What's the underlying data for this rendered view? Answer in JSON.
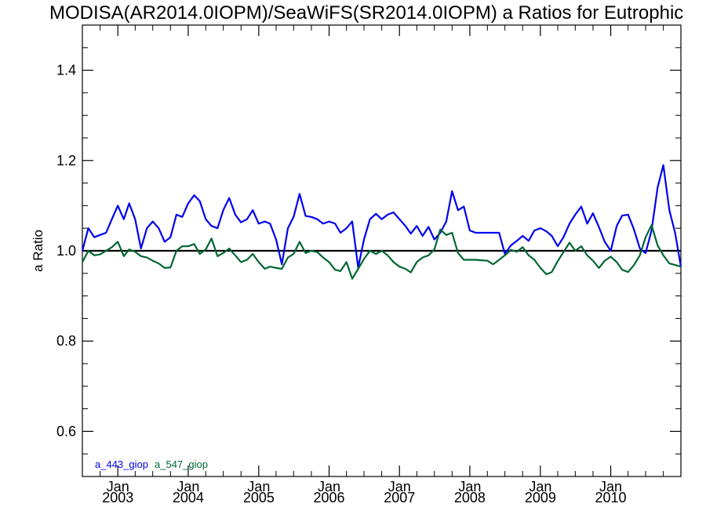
{
  "chart_data": {
    "type": "line",
    "title": "MODISA(AR2014.0IOPM)/SeaWiFS(SR2014.0IOPM)  a Ratios for Eutrophic",
    "xlabel": "",
    "ylabel": "a Ratio",
    "xlim": [
      "2002-07-01",
      "2010-12-31"
    ],
    "ylim": [
      0.5,
      1.5
    ],
    "yticks": [
      "0.6",
      "0.8",
      "1.0",
      "1.2",
      "1.4"
    ],
    "xticks": [
      {
        "month": "Jan",
        "year": "2003",
        "date": "2003-01-01"
      },
      {
        "month": "Jan",
        "year": "2004",
        "date": "2004-01-01"
      },
      {
        "month": "Jan",
        "year": "2005",
        "date": "2005-01-01"
      },
      {
        "month": "Jan",
        "year": "2006",
        "date": "2006-01-01"
      },
      {
        "month": "Jan",
        "year": "2007",
        "date": "2007-01-01"
      },
      {
        "month": "Jan",
        "year": "2008",
        "date": "2008-01-01"
      },
      {
        "month": "Jan",
        "year": "2009",
        "date": "2009-01-01"
      },
      {
        "month": "Jan",
        "year": "2010",
        "date": "2010-01-01"
      }
    ],
    "reference_line": {
      "y": 1.0,
      "color": "#000000"
    },
    "series": [
      {
        "name": "a_443_giop",
        "color": "#0000ee",
        "points": [
          [
            "2002-07-01",
            1.0
          ],
          [
            "2002-08-01",
            1.05
          ],
          [
            "2002-09-01",
            1.03
          ],
          [
            "2002-10-01",
            1.035
          ],
          [
            "2002-11-01",
            1.04
          ],
          [
            "2002-12-01",
            1.07
          ],
          [
            "2003-01-01",
            1.1
          ],
          [
            "2003-02-01",
            1.07
          ],
          [
            "2003-03-01",
            1.105
          ],
          [
            "2003-04-01",
            1.07
          ],
          [
            "2003-05-01",
            1.005
          ],
          [
            "2003-06-01",
            1.05
          ],
          [
            "2003-07-01",
            1.065
          ],
          [
            "2003-08-01",
            1.05
          ],
          [
            "2003-09-01",
            1.02
          ],
          [
            "2003-10-01",
            1.03
          ],
          [
            "2003-11-01",
            1.08
          ],
          [
            "2003-12-01",
            1.075
          ],
          [
            "2004-01-01",
            1.105
          ],
          [
            "2004-02-01",
            1.123
          ],
          [
            "2004-03-01",
            1.11
          ],
          [
            "2004-04-01",
            1.07
          ],
          [
            "2004-05-01",
            1.055
          ],
          [
            "2004-06-01",
            1.05
          ],
          [
            "2004-07-01",
            1.09
          ],
          [
            "2004-08-01",
            1.117
          ],
          [
            "2004-09-01",
            1.08
          ],
          [
            "2004-10-01",
            1.063
          ],
          [
            "2004-11-01",
            1.07
          ],
          [
            "2004-12-01",
            1.09
          ],
          [
            "2005-01-01",
            1.06
          ],
          [
            "2005-02-01",
            1.065
          ],
          [
            "2005-03-01",
            1.06
          ],
          [
            "2005-04-01",
            1.025
          ],
          [
            "2005-05-01",
            0.97
          ],
          [
            "2005-06-01",
            1.05
          ],
          [
            "2005-07-01",
            1.075
          ],
          [
            "2005-08-01",
            1.126
          ],
          [
            "2005-09-01",
            1.077
          ],
          [
            "2005-10-01",
            1.075
          ],
          [
            "2005-11-01",
            1.07
          ],
          [
            "2005-12-01",
            1.06
          ],
          [
            "2006-01-01",
            1.065
          ],
          [
            "2006-02-01",
            1.06
          ],
          [
            "2006-03-01",
            1.04
          ],
          [
            "2006-04-01",
            1.05
          ],
          [
            "2006-05-01",
            1.065
          ],
          [
            "2006-06-01",
            0.963
          ],
          [
            "2006-07-01",
            1.025
          ],
          [
            "2006-08-01",
            1.07
          ],
          [
            "2006-09-01",
            1.082
          ],
          [
            "2006-10-01",
            1.07
          ],
          [
            "2006-11-01",
            1.08
          ],
          [
            "2006-12-01",
            1.085
          ],
          [
            "2007-01-01",
            1.07
          ],
          [
            "2007-02-01",
            1.055
          ],
          [
            "2007-03-01",
            1.038
          ],
          [
            "2007-04-01",
            1.055
          ],
          [
            "2007-05-01",
            1.033
          ],
          [
            "2007-06-01",
            1.053
          ],
          [
            "2007-07-01",
            1.025
          ],
          [
            "2007-08-01",
            1.04
          ],
          [
            "2007-09-01",
            1.065
          ],
          [
            "2007-10-01",
            1.132
          ],
          [
            "2007-11-01",
            1.09
          ],
          [
            "2007-12-01",
            1.098
          ],
          [
            "2008-01-01",
            1.045
          ],
          [
            "2008-02-01",
            1.04
          ],
          [
            "2008-03-01",
            1.04
          ],
          [
            "2008-04-01",
            1.04
          ],
          [
            "2008-05-01",
            1.04
          ],
          [
            "2008-06-01",
            1.04
          ],
          [
            "2008-07-01",
            0.993
          ],
          [
            "2008-08-01",
            1.012
          ],
          [
            "2008-09-01",
            1.022
          ],
          [
            "2008-10-01",
            1.033
          ],
          [
            "2008-11-01",
            1.022
          ],
          [
            "2008-12-01",
            1.045
          ],
          [
            "2009-01-01",
            1.05
          ],
          [
            "2009-02-01",
            1.043
          ],
          [
            "2009-03-01",
            1.033
          ],
          [
            "2009-04-01",
            1.01
          ],
          [
            "2009-05-01",
            1.03
          ],
          [
            "2009-06-01",
            1.06
          ],
          [
            "2009-07-01",
            1.08
          ],
          [
            "2009-08-01",
            1.098
          ],
          [
            "2009-09-01",
            1.06
          ],
          [
            "2009-10-01",
            1.083
          ],
          [
            "2009-11-01",
            1.052
          ],
          [
            "2009-12-01",
            1.02
          ],
          [
            "2010-01-01",
            1.0
          ],
          [
            "2010-02-01",
            1.055
          ],
          [
            "2010-03-01",
            1.078
          ],
          [
            "2010-04-01",
            1.08
          ],
          [
            "2010-05-01",
            1.048
          ],
          [
            "2010-06-01",
            1.005
          ],
          [
            "2010-07-01",
            0.995
          ],
          [
            "2010-08-01",
            1.045
          ],
          [
            "2010-09-01",
            1.14
          ],
          [
            "2010-10-01",
            1.19
          ],
          [
            "2010-11-01",
            1.09
          ],
          [
            "2010-12-01",
            1.04
          ],
          [
            "2010-12-31",
            0.965
          ]
        ]
      },
      {
        "name": "a_547_giop",
        "color": "#006633",
        "points": [
          [
            "2002-07-01",
            0.975
          ],
          [
            "2002-08-01",
            1.0
          ],
          [
            "2002-09-01",
            0.99
          ],
          [
            "2002-10-01",
            0.992
          ],
          [
            "2002-11-01",
            1.0
          ],
          [
            "2002-12-01",
            1.008
          ],
          [
            "2003-01-01",
            1.02
          ],
          [
            "2003-02-01",
            0.988
          ],
          [
            "2003-03-01",
            1.003
          ],
          [
            "2003-04-01",
            0.998
          ],
          [
            "2003-05-01",
            0.988
          ],
          [
            "2003-06-01",
            0.985
          ],
          [
            "2003-07-01",
            0.978
          ],
          [
            "2003-08-01",
            0.972
          ],
          [
            "2003-09-01",
            0.962
          ],
          [
            "2003-10-01",
            0.963
          ],
          [
            "2003-11-01",
            1.0
          ],
          [
            "2003-12-01",
            1.01
          ],
          [
            "2004-01-01",
            1.01
          ],
          [
            "2004-02-01",
            1.015
          ],
          [
            "2004-03-01",
            0.993
          ],
          [
            "2004-04-01",
            1.003
          ],
          [
            "2004-05-01",
            1.027
          ],
          [
            "2004-06-01",
            0.988
          ],
          [
            "2004-07-01",
            0.995
          ],
          [
            "2004-08-01",
            1.005
          ],
          [
            "2004-09-01",
            0.99
          ],
          [
            "2004-10-01",
            0.975
          ],
          [
            "2004-11-01",
            0.98
          ],
          [
            "2004-12-01",
            0.993
          ],
          [
            "2005-01-01",
            0.975
          ],
          [
            "2005-02-01",
            0.96
          ],
          [
            "2005-03-01",
            0.965
          ],
          [
            "2005-04-01",
            0.962
          ],
          [
            "2005-05-01",
            0.96
          ],
          [
            "2005-06-01",
            0.985
          ],
          [
            "2005-07-01",
            0.993
          ],
          [
            "2005-08-01",
            1.02
          ],
          [
            "2005-09-01",
            0.995
          ],
          [
            "2005-10-01",
            1.0
          ],
          [
            "2005-11-01",
            0.997
          ],
          [
            "2005-12-01",
            0.985
          ],
          [
            "2006-01-01",
            0.975
          ],
          [
            "2006-02-01",
            0.958
          ],
          [
            "2006-03-01",
            0.955
          ],
          [
            "2006-04-01",
            0.975
          ],
          [
            "2006-05-01",
            0.938
          ],
          [
            "2006-06-01",
            0.96
          ],
          [
            "2006-07-01",
            0.982
          ],
          [
            "2006-08-01",
            1.0
          ],
          [
            "2006-09-01",
            0.993
          ],
          [
            "2006-10-01",
            1.0
          ],
          [
            "2006-11-01",
            0.99
          ],
          [
            "2006-12-01",
            0.975
          ],
          [
            "2007-01-01",
            0.965
          ],
          [
            "2007-02-01",
            0.96
          ],
          [
            "2007-03-01",
            0.952
          ],
          [
            "2007-04-01",
            0.975
          ],
          [
            "2007-05-01",
            0.985
          ],
          [
            "2007-06-01",
            0.99
          ],
          [
            "2007-07-01",
            1.003
          ],
          [
            "2007-08-01",
            1.047
          ],
          [
            "2007-09-01",
            1.035
          ],
          [
            "2007-10-01",
            1.04
          ],
          [
            "2007-11-01",
            0.995
          ],
          [
            "2007-12-01",
            0.98
          ],
          [
            "2008-01-01",
            0.98
          ],
          [
            "2008-02-01",
            0.98
          ],
          [
            "2008-03-01",
            0.979
          ],
          [
            "2008-04-01",
            0.978
          ],
          [
            "2008-05-01",
            0.97
          ],
          [
            "2008-06-01",
            0.98
          ],
          [
            "2008-07-01",
            0.99
          ],
          [
            "2008-08-01",
            1.002
          ],
          [
            "2008-09-01",
            0.998
          ],
          [
            "2008-10-01",
            1.008
          ],
          [
            "2008-11-01",
            0.99
          ],
          [
            "2008-12-01",
            0.98
          ],
          [
            "2009-01-01",
            0.962
          ],
          [
            "2009-02-01",
            0.948
          ],
          [
            "2009-03-01",
            0.953
          ],
          [
            "2009-04-01",
            0.977
          ],
          [
            "2009-05-01",
            0.997
          ],
          [
            "2009-06-01",
            1.018
          ],
          [
            "2009-07-01",
            1.0
          ],
          [
            "2009-08-01",
            1.01
          ],
          [
            "2009-09-01",
            0.99
          ],
          [
            "2009-10-01",
            0.978
          ],
          [
            "2009-11-01",
            0.962
          ],
          [
            "2009-12-01",
            0.978
          ],
          [
            "2010-01-01",
            0.987
          ],
          [
            "2010-02-01",
            0.975
          ],
          [
            "2010-03-01",
            0.958
          ],
          [
            "2010-04-01",
            0.953
          ],
          [
            "2010-05-01",
            0.968
          ],
          [
            "2010-06-01",
            0.99
          ],
          [
            "2010-07-01",
            1.03
          ],
          [
            "2010-08-01",
            1.057
          ],
          [
            "2010-09-01",
            1.012
          ],
          [
            "2010-10-01",
            0.99
          ],
          [
            "2010-11-01",
            0.972
          ],
          [
            "2010-12-31",
            0.965
          ]
        ]
      }
    ]
  }
}
